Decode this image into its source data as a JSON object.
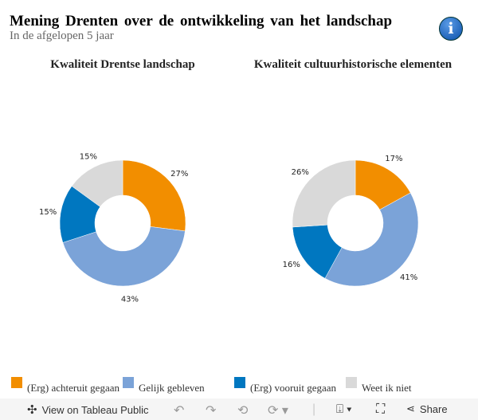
{
  "header": {
    "title": "Mening Drenten over de ontwikkeling van het landschap",
    "subtitle": "In de afgelopen 5 jaar",
    "info_icon": "info-icon"
  },
  "colors": {
    "(Erg) achteruit gegaan": "#f28e00",
    "Gelijk gebleven": "#7ba3d8",
    "(Erg) vooruit gegaan": "#0077c0",
    "Weet ik niet": "#d9d9d9"
  },
  "chart_data": [
    {
      "type": "pie",
      "title": "Kwaliteit Drentse landschap",
      "categories": [
        "(Erg) achteruit gegaan",
        "Gelijk gebleven",
        "(Erg) vooruit gegaan",
        "Weet ik niet"
      ],
      "values": [
        27,
        43,
        15,
        15
      ],
      "labels": [
        "27%",
        "43%",
        "15%",
        "15%"
      ]
    },
    {
      "type": "pie",
      "title": "Kwaliteit cultuurhistorische elementen",
      "categories": [
        "(Erg) achteruit gegaan",
        "Gelijk gebleven",
        "(Erg) vooruit gegaan",
        "Weet ik niet"
      ],
      "values": [
        17,
        41,
        16,
        26
      ],
      "labels": [
        "17%",
        "41%",
        "16%",
        "26%"
      ]
    }
  ],
  "legend": [
    "(Erg) achteruit gegaan",
    "Gelijk gebleven",
    "(Erg) vooruit gegaan",
    "Weet ik niet"
  ],
  "toolbar": {
    "view": "View on Tableau Public",
    "share": "Share"
  }
}
